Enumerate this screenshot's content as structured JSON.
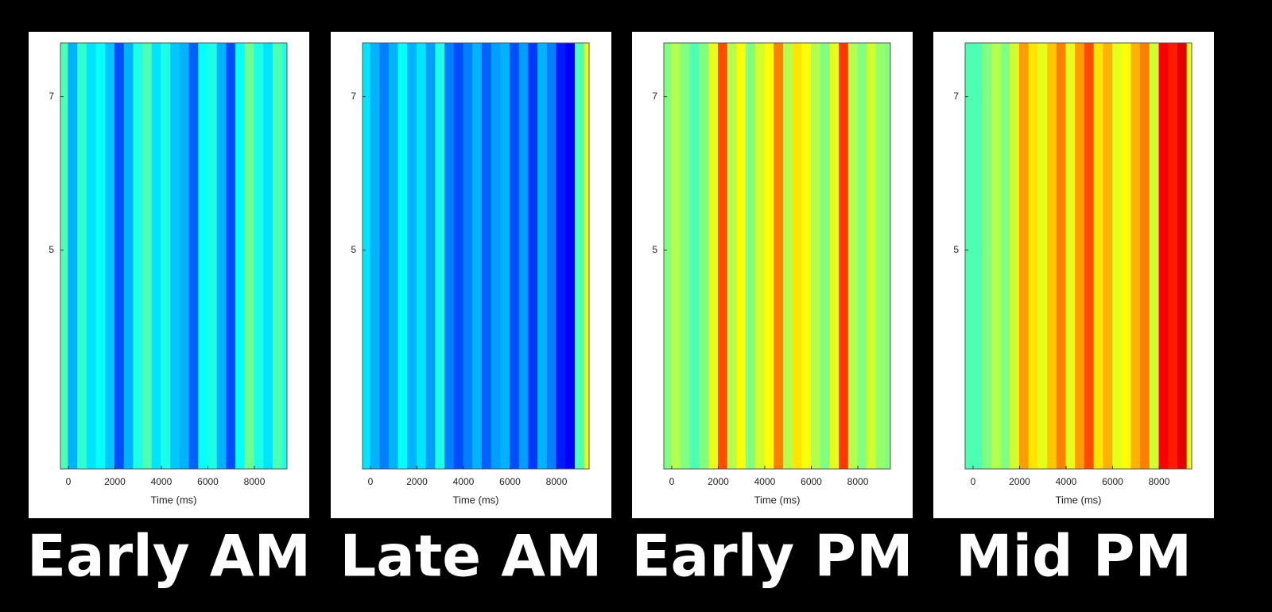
{
  "chart_data": [
    {
      "type": "heatmap",
      "title": "Early AM",
      "x_label": "Time (ms)",
      "colormap": "jet",
      "clim": [
        0,
        1
      ],
      "x": [
        -200,
        200,
        600,
        1000,
        1400,
        1800,
        2200,
        2600,
        3000,
        3400,
        3800,
        4200,
        4600,
        5000,
        5400,
        5800,
        6200,
        6600,
        7000,
        7400,
        7800,
        8200,
        8600,
        9000,
        9400
      ],
      "values": [
        0.45,
        0.3,
        0.42,
        0.35,
        0.38,
        0.32,
        0.2,
        0.3,
        0.4,
        0.45,
        0.35,
        0.4,
        0.32,
        0.3,
        0.22,
        0.38,
        0.4,
        0.3,
        0.2,
        0.38,
        0.48,
        0.4,
        0.35,
        0.45,
        0.4
      ],
      "xlim": [
        -340,
        9400
      ],
      "ylim": [
        2.15,
        7.7
      ],
      "xticks": [
        0,
        2000,
        4000,
        6000,
        8000
      ],
      "yticks": [
        5,
        7
      ]
    },
    {
      "type": "heatmap",
      "title": "Late AM",
      "x_label": "Time (ms)",
      "colormap": "jet",
      "clim": [
        0,
        1
      ],
      "x": [
        -200,
        200,
        600,
        1000,
        1400,
        1800,
        2200,
        2600,
        3000,
        3400,
        3800,
        4200,
        4600,
        5000,
        5400,
        5800,
        6200,
        6600,
        7000,
        7400,
        7800,
        8200,
        8600,
        9000,
        9400
      ],
      "values": [
        0.35,
        0.3,
        0.25,
        0.3,
        0.38,
        0.3,
        0.35,
        0.28,
        0.4,
        0.25,
        0.2,
        0.25,
        0.3,
        0.22,
        0.28,
        0.3,
        0.2,
        0.28,
        0.18,
        0.3,
        0.25,
        0.15,
        0.12,
        0.45,
        0.6
      ],
      "xlim": [
        -340,
        9400
      ],
      "ylim": [
        2.15,
        7.7
      ],
      "xticks": [
        0,
        2000,
        4000,
        6000,
        8000
      ],
      "yticks": [
        5,
        7
      ]
    },
    {
      "type": "heatmap",
      "title": "Early PM",
      "x_label": "Time (ms)",
      "colormap": "jet",
      "clim": [
        0,
        1
      ],
      "x": [
        -200,
        200,
        600,
        1000,
        1400,
        1800,
        2200,
        2600,
        3000,
        3400,
        3800,
        4200,
        4600,
        5000,
        5400,
        5800,
        6200,
        6600,
        7000,
        7400,
        7800,
        8200,
        8600,
        9000,
        9400
      ],
      "values": [
        0.5,
        0.55,
        0.5,
        0.45,
        0.5,
        0.6,
        0.8,
        0.55,
        0.62,
        0.5,
        0.58,
        0.62,
        0.75,
        0.55,
        0.65,
        0.62,
        0.55,
        0.5,
        0.6,
        0.82,
        0.55,
        0.5,
        0.58,
        0.52,
        0.5
      ],
      "xlim": [
        -340,
        9400
      ],
      "ylim": [
        2.15,
        7.7
      ],
      "xticks": [
        0,
        2000,
        4000,
        6000,
        8000
      ],
      "yticks": [
        5,
        7
      ]
    },
    {
      "type": "heatmap",
      "title": "Mid PM",
      "x_label": "Time (ms)",
      "colormap": "jet",
      "clim": [
        0,
        1
      ],
      "x": [
        -200,
        200,
        600,
        1000,
        1400,
        1800,
        2200,
        2600,
        3000,
        3400,
        3800,
        4200,
        4600,
        5000,
        5400,
        5800,
        6200,
        6600,
        7000,
        7400,
        7800,
        8200,
        8600,
        9000,
        9400
      ],
      "values": [
        0.45,
        0.45,
        0.5,
        0.55,
        0.5,
        0.58,
        0.72,
        0.65,
        0.6,
        0.68,
        0.75,
        0.6,
        0.72,
        0.8,
        0.65,
        0.7,
        0.6,
        0.62,
        0.7,
        0.75,
        0.58,
        0.88,
        0.85,
        0.9,
        0.6
      ],
      "xlim": [
        -340,
        9400
      ],
      "ylim": [
        2.15,
        7.7
      ],
      "xticks": [
        0,
        2000,
        4000,
        6000,
        8000
      ],
      "yticks": [
        5,
        7
      ]
    }
  ]
}
